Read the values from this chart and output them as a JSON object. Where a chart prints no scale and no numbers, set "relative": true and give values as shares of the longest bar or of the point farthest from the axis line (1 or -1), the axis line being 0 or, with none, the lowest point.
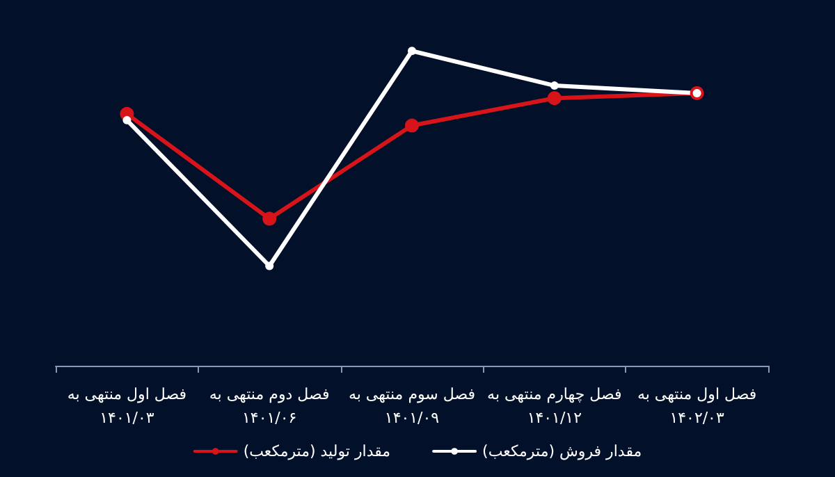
{
  "chart_data": {
    "type": "line",
    "relative": true,
    "categories": [
      "فصل اول منتهی به\n۱۴۰۱/۰۳",
      "فصل دوم منتهی به\n۱۴۰۱/۰۶",
      "فصل سوم منتهی به\n۱۴۰۱/۰۹",
      "فصل چهارم منتهی به\n۱۴۰۱/۱۲",
      "فصل اول منتهی به\n۱۴۰۲/۰۳"
    ],
    "series": [
      {
        "name": "مقدار تولید (مترمکعب)",
        "color": "#d7141a",
        "values": [
          0.8,
          0.467,
          0.763,
          0.85,
          0.866
        ]
      },
      {
        "name": "مقدار فروش (مترمکعب)",
        "color": "#ffffff",
        "values": [
          0.78,
          0.317,
          1,
          0.89,
          0.866
        ]
      }
    ],
    "legend": "bottom",
    "marker": "circle",
    "line_style": "solid"
  }
}
